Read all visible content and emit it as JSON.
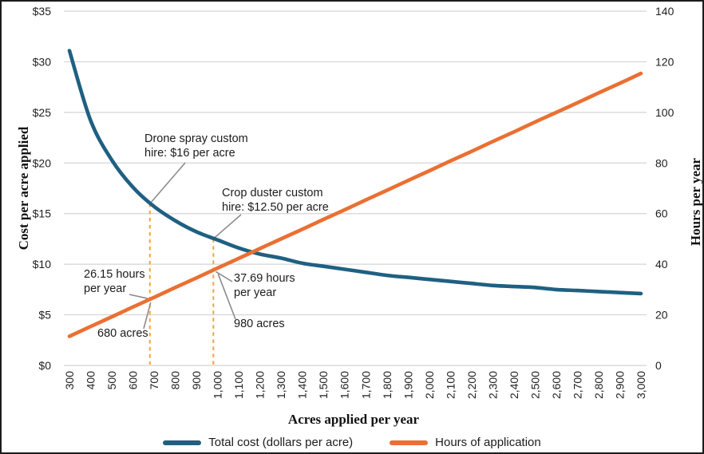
{
  "axes": {
    "left_title": "Cost per acre applied",
    "right_title": "Hours per year",
    "x_title": "Acres applied per year"
  },
  "annotations": {
    "drone": {
      "line1": "Drone spray custom",
      "line2": "hire: $16 per acre"
    },
    "crop_duster": {
      "line1": "Crop duster custom",
      "line2": "hire: $12.50 per acre"
    },
    "hours_680": {
      "line1": "26.15 hours",
      "line2": "per year"
    },
    "hours_980": {
      "line1": "37.69 hours",
      "line2": "per year"
    },
    "acres_680": {
      "label": "680 acres"
    },
    "acres_980": {
      "label": "980 acres"
    }
  },
  "legend": {
    "items": [
      {
        "label": "Total cost (dollars per acre)",
        "color": "#1f6082"
      },
      {
        "label": "Hours of application",
        "color": "#ea7032"
      }
    ]
  },
  "colors": {
    "grid": "#d4d4d4",
    "leader": "#8c8c8c",
    "reference_dashed": "#f2a43b",
    "tick_text": "#1f1f1f"
  },
  "chart_data": {
    "type": "line",
    "title": "",
    "xlabel": "Acres applied per year",
    "ylabel_left": "Cost per acre applied",
    "ylabel_right": "Hours per year",
    "grid": "horizontal",
    "legend_position": "bottom",
    "x_axis": {
      "min": 300,
      "max": 3000,
      "tick_step": 100,
      "tick_labels": [
        "300",
        "400",
        "500",
        "600",
        "700",
        "800",
        "900",
        "1,000",
        "1,100",
        "1,200",
        "1,300",
        "1,400",
        "1,500",
        "1,600",
        "1,700",
        "1,800",
        "1,900",
        "2,000",
        "2,100",
        "2,200",
        "2,300",
        "2,400",
        "2,500",
        "2,600",
        "2,700",
        "2,800",
        "2,900",
        "3,000"
      ]
    },
    "y_axis_left": {
      "min": 0,
      "max": 35,
      "tick_step": 5,
      "tick_labels": [
        "$0",
        "$5",
        "$10",
        "$15",
        "$20",
        "$25",
        "$30",
        "$35"
      ]
    },
    "y_axis_right": {
      "min": 0,
      "max": 140,
      "tick_step": 20,
      "tick_labels": [
        "0",
        "20",
        "40",
        "60",
        "80",
        "100",
        "120",
        "140"
      ]
    },
    "x": [
      300,
      400,
      500,
      600,
      700,
      800,
      900,
      1000,
      1100,
      1200,
      1300,
      1400,
      1500,
      1600,
      1700,
      1800,
      1900,
      2000,
      2100,
      2200,
      2300,
      2400,
      2500,
      2600,
      2700,
      2800,
      2900,
      3000
    ],
    "series": [
      {
        "name": "Total cost (dollars per acre)",
        "axis": "left",
        "color": "#1f6082",
        "values": [
          31.1,
          24.2,
          20.3,
          17.6,
          15.7,
          14.3,
          13.2,
          12.4,
          11.6,
          11.0,
          10.6,
          10.1,
          9.8,
          9.5,
          9.2,
          8.9,
          8.7,
          8.5,
          8.3,
          8.1,
          7.9,
          7.8,
          7.7,
          7.5,
          7.4,
          7.3,
          7.2,
          7.1
        ]
      },
      {
        "name": "Hours of application",
        "axis": "right",
        "color": "#ea7032",
        "values": [
          11.5,
          15.4,
          19.2,
          23.1,
          26.9,
          30.8,
          34.6,
          38.5,
          42.3,
          46.2,
          50.0,
          53.8,
          57.7,
          61.5,
          65.4,
          69.2,
          73.1,
          76.9,
          80.8,
          84.6,
          88.5,
          92.3,
          96.2,
          100.0,
          103.8,
          107.7,
          111.5,
          115.4
        ]
      }
    ],
    "reference_lines": [
      {
        "x": 680,
        "top_value_dollars": 16,
        "style": "dashed"
      },
      {
        "x": 980,
        "top_value_dollars": 12.5,
        "style": "dashed"
      }
    ],
    "callouts": [
      {
        "text": "Drone spray custom hire: $16 per acre",
        "x": 680,
        "dollars_per_acre": 16
      },
      {
        "text": "Crop duster custom hire: $12.50 per acre",
        "x": 980,
        "dollars_per_acre": 12.5
      },
      {
        "text": "26.15 hours per year",
        "x": 680,
        "hours_per_year": 26.15
      },
      {
        "text": "37.69 hours per year",
        "x": 980,
        "hours_per_year": 37.69
      },
      {
        "text": "680 acres",
        "x": 680
      },
      {
        "text": "980 acres",
        "x": 980
      }
    ]
  }
}
